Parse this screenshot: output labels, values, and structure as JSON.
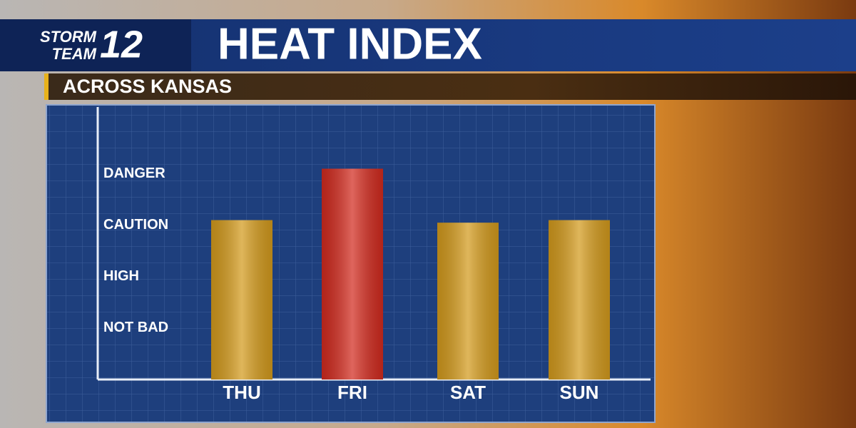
{
  "logo": {
    "line1": "STORM",
    "line2": "TEAM",
    "number": "12"
  },
  "chart_data": {
    "type": "bar",
    "title": "HEAT INDEX",
    "subtitle": "ACROSS KANSAS",
    "categories": [
      "THU",
      "FRI",
      "SAT",
      "SUN"
    ],
    "values": [
      3.1,
      4.1,
      3.05,
      3.1
    ],
    "colors": [
      "#d39a1c",
      "#d22a1e",
      "#d39a1c",
      "#d39a1c"
    ],
    "ylim": [
      0,
      5.3
    ],
    "yticks": [
      {
        "value": 1,
        "label": "NOT BAD"
      },
      {
        "value": 2,
        "label": "HIGH"
      },
      {
        "value": 3,
        "label": "CAUTION"
      },
      {
        "value": 4,
        "label": "DANGER"
      }
    ]
  }
}
